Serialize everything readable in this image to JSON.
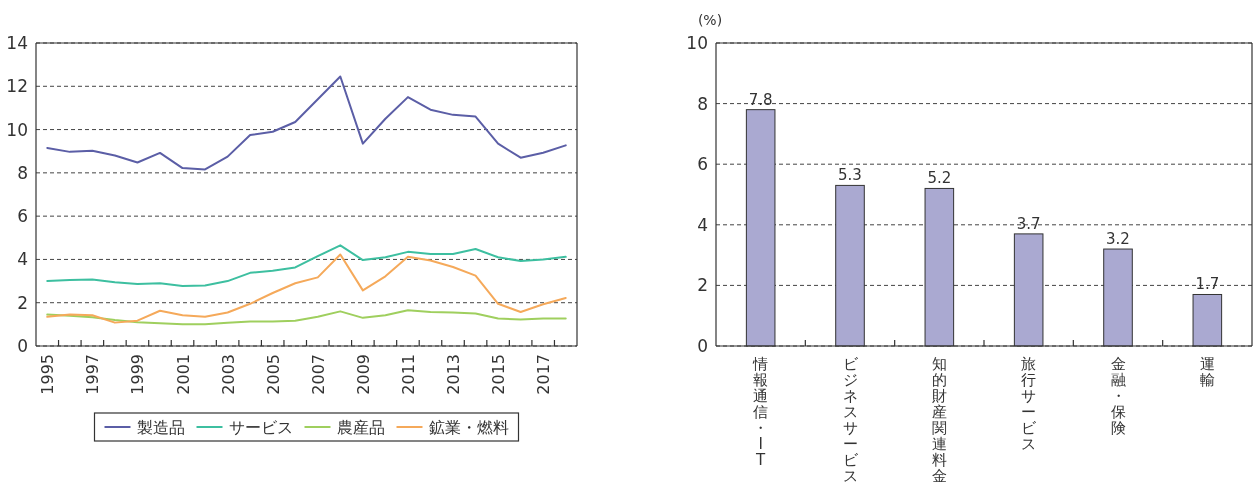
{
  "chart_data": [
    {
      "type": "line",
      "categories": [
        "1995",
        null,
        "1997",
        null,
        "1999",
        null,
        "2001",
        null,
        "2003",
        null,
        "2005",
        null,
        "2007",
        null,
        "2009",
        null,
        "2011",
        null,
        "2013",
        null,
        "2015",
        null,
        "2017",
        null
      ],
      "series": [
        {
          "name": "製造品",
          "color": "#5b5ea6",
          "values": [
            9.15,
            8.97,
            9.02,
            8.8,
            8.48,
            8.92,
            8.22,
            8.16,
            8.75,
            9.75,
            9.9,
            10.35,
            11.4,
            12.45,
            9.35,
            10.5,
            11.5,
            10.92,
            10.68,
            10.6,
            9.35,
            8.7,
            8.93,
            9.27
          ]
        },
        {
          "name": "サービス",
          "color": "#3dbfa0",
          "values": [
            3.0,
            3.05,
            3.07,
            2.95,
            2.87,
            2.9,
            2.77,
            2.8,
            3.0,
            3.38,
            3.48,
            3.63,
            4.15,
            4.65,
            3.97,
            4.1,
            4.35,
            4.25,
            4.25,
            4.48,
            4.1,
            3.93,
            4.0,
            4.12
          ]
        },
        {
          "name": "農産品",
          "color": "#9fcf5e",
          "values": [
            1.45,
            1.4,
            1.33,
            1.2,
            1.1,
            1.05,
            1.0,
            1.0,
            1.07,
            1.13,
            1.13,
            1.17,
            1.35,
            1.6,
            1.3,
            1.42,
            1.65,
            1.57,
            1.55,
            1.5,
            1.27,
            1.23,
            1.27,
            1.27
          ]
        },
        {
          "name": "鉱業・燃料",
          "color": "#f5a95a",
          "values": [
            1.35,
            1.45,
            1.42,
            1.08,
            1.17,
            1.63,
            1.42,
            1.35,
            1.55,
            1.95,
            2.45,
            2.9,
            3.17,
            4.23,
            2.57,
            3.22,
            4.12,
            3.95,
            3.65,
            3.25,
            1.95,
            1.57,
            1.93,
            2.22
          ]
        }
      ],
      "ylim": [
        0,
        14
      ],
      "yticks": [
        0,
        2,
        4,
        6,
        8,
        10,
        12,
        14
      ],
      "grid": "y",
      "legend": "bottom"
    },
    {
      "type": "bar",
      "ylabel": "(%)",
      "categories": [
        "情報通信・IT",
        "ビジネスサービス",
        "知的財産関連料金",
        "旅行サービス",
        "金融・保険",
        "運輸"
      ],
      "values": [
        7.8,
        5.3,
        5.2,
        3.7,
        3.2,
        1.7
      ],
      "color": "#aaa9d1",
      "data_labels": true,
      "ylim": [
        0,
        10
      ],
      "yticks": [
        0,
        2,
        4,
        6,
        8,
        10
      ],
      "grid": "y"
    }
  ]
}
